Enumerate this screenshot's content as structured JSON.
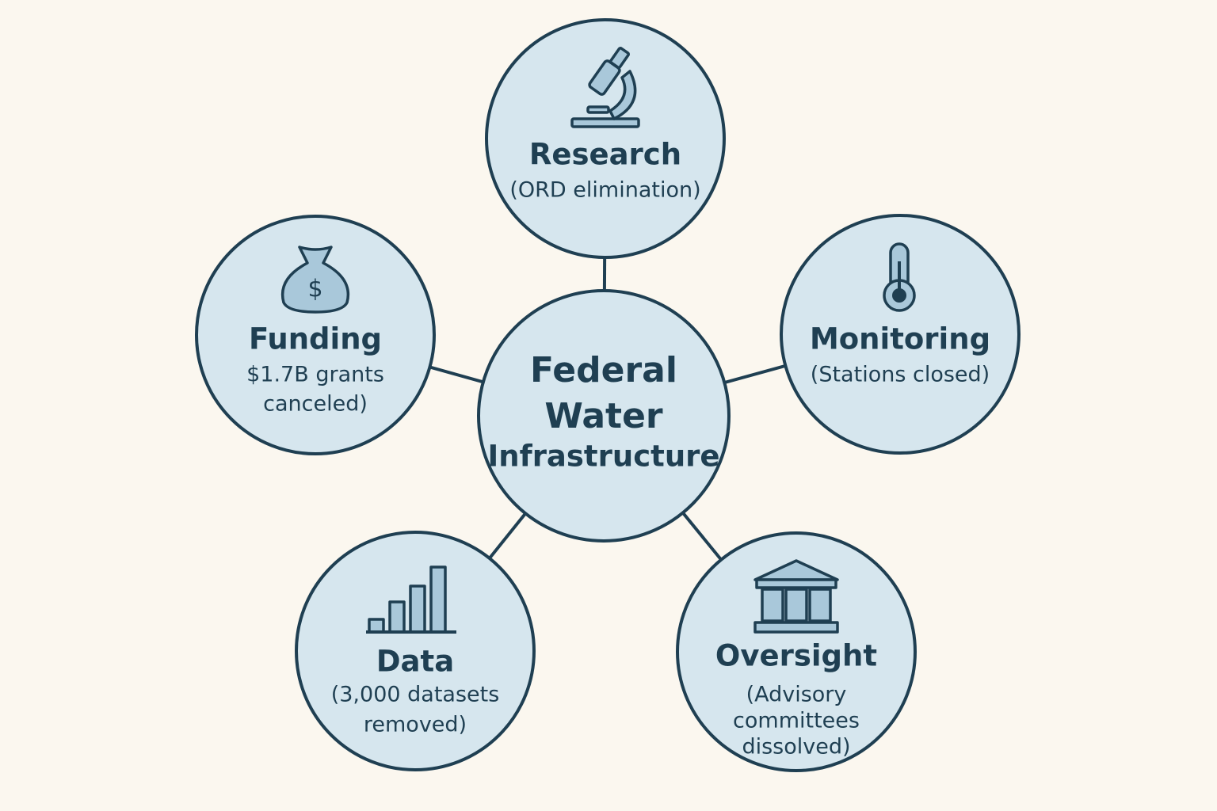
{
  "center": {
    "lines": [
      "Federal",
      "Water",
      "Infrastructure"
    ]
  },
  "nodes": [
    {
      "title": "Research",
      "lines": [
        "(ORD elimination)"
      ]
    },
    {
      "title": "Funding",
      "lines": [
        "$1.7B grants",
        "canceled)"
      ]
    },
    {
      "title": "Monitoring",
      "lines": [
        "(Stations closed)"
      ]
    },
    {
      "title": "Data",
      "lines": [
        "(3,000 datasets",
        "removed)"
      ]
    },
    {
      "title": "Oversight",
      "lines": [
        "(Advisory",
        "committees",
        "dissolved)"
      ]
    }
  ]
}
